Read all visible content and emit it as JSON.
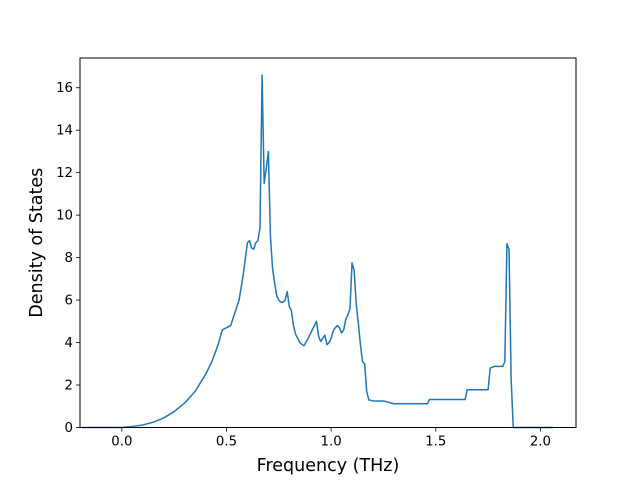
{
  "chart_data": {
    "type": "line",
    "title": "",
    "xlabel": "Frequency (THz)",
    "ylabel": "Density of States",
    "xlim": [
      -0.2,
      2.17
    ],
    "ylim": [
      0,
      17.4
    ],
    "xticks": [
      0.0,
      0.5,
      1.0,
      1.5,
      2.0
    ],
    "xtick_labels": [
      "0.0",
      "0.5",
      "1.0",
      "1.5",
      "2.0"
    ],
    "yticks": [
      0,
      2,
      4,
      6,
      8,
      10,
      12,
      14,
      16
    ],
    "ytick_labels": [
      "0",
      "2",
      "4",
      "6",
      "8",
      "10",
      "12",
      "14",
      "16"
    ],
    "grid": false,
    "line_color": "#1f77b4",
    "series": [
      {
        "x": [
          -0.19,
          0.0,
          0.05,
          0.1,
          0.15,
          0.2,
          0.25,
          0.3,
          0.35,
          0.4,
          0.43,
          0.46,
          0.48,
          0.49,
          0.5,
          0.52,
          0.54,
          0.56,
          0.58,
          0.6,
          0.61,
          0.62,
          0.63,
          0.64,
          0.65,
          0.66,
          0.67,
          0.68,
          0.69,
          0.7,
          0.71,
          0.72,
          0.73,
          0.74,
          0.75,
          0.76,
          0.77,
          0.78,
          0.79,
          0.8,
          0.81,
          0.82,
          0.83,
          0.85,
          0.87,
          0.89,
          0.91,
          0.92,
          0.93,
          0.94,
          0.95,
          0.96,
          0.97,
          0.98,
          0.99,
          1.0,
          1.01,
          1.02,
          1.03,
          1.04,
          1.05,
          1.06,
          1.07,
          1.08,
          1.09,
          1.1,
          1.11,
          1.12,
          1.13,
          1.14,
          1.15,
          1.16,
          1.17,
          1.18,
          1.19,
          1.2,
          1.25,
          1.3,
          1.35,
          1.4,
          1.45,
          1.46,
          1.47,
          1.5,
          1.55,
          1.6,
          1.63,
          1.64,
          1.65,
          1.7,
          1.74,
          1.75,
          1.76,
          1.78,
          1.8,
          1.82,
          1.83,
          1.84,
          1.85,
          1.86,
          1.87,
          1.88,
          1.9,
          2.0,
          2.06
        ],
        "y": [
          0,
          0,
          0.05,
          0.12,
          0.25,
          0.45,
          0.75,
          1.15,
          1.7,
          2.5,
          3.1,
          3.9,
          4.6,
          4.65,
          4.7,
          4.8,
          5.4,
          6.0,
          7.2,
          8.7,
          8.8,
          8.45,
          8.4,
          8.7,
          8.8,
          9.4,
          16.6,
          11.5,
          12.2,
          13.0,
          9.0,
          7.5,
          6.8,
          6.2,
          6.0,
          5.9,
          5.9,
          6.0,
          6.4,
          5.7,
          5.5,
          4.8,
          4.4,
          4.0,
          3.85,
          4.2,
          4.6,
          4.8,
          5.0,
          4.3,
          4.05,
          4.2,
          4.35,
          3.9,
          4.0,
          4.2,
          4.55,
          4.7,
          4.8,
          4.7,
          4.45,
          4.6,
          5.1,
          5.3,
          5.6,
          7.75,
          7.4,
          5.8,
          4.9,
          3.9,
          3.1,
          3.0,
          1.7,
          1.3,
          1.28,
          1.25,
          1.25,
          1.12,
          1.12,
          1.12,
          1.12,
          1.12,
          1.32,
          1.32,
          1.32,
          1.32,
          1.32,
          1.32,
          1.78,
          1.78,
          1.78,
          1.78,
          2.8,
          2.88,
          2.88,
          2.88,
          3.1,
          8.65,
          8.4,
          2.3,
          0,
          0,
          0,
          0,
          0
        ]
      }
    ]
  }
}
